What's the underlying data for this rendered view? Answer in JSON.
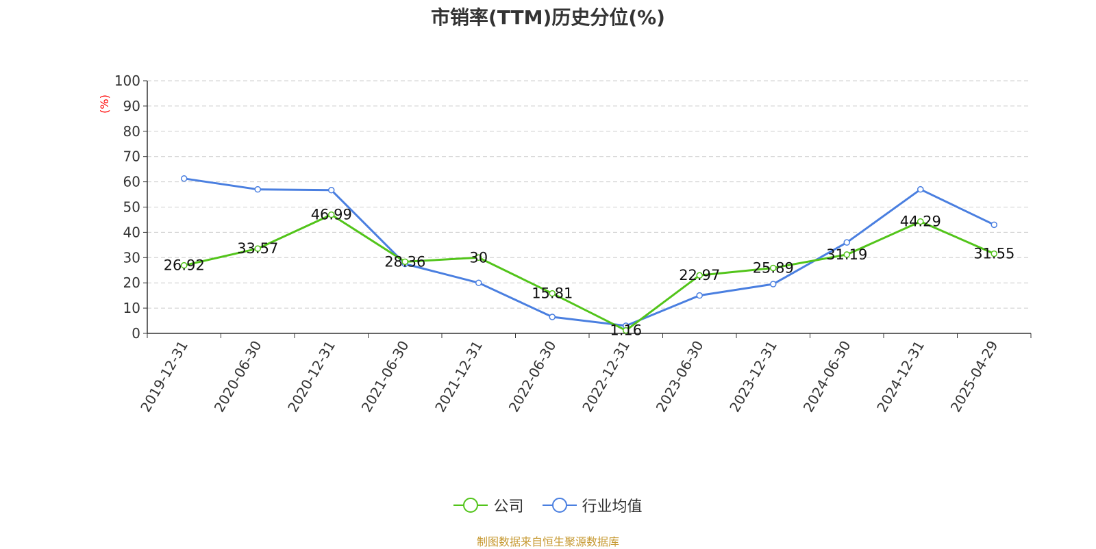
{
  "title": "市销率(TTM)历史分位(%)",
  "source_note": "制图数据来自恒生聚源数据库",
  "colors": {
    "company": "#52c41a",
    "industry": "#4a7fe0",
    "ylabel": "#ff0000",
    "source": "#c79a33"
  },
  "chart_data": {
    "type": "line",
    "title": "市销率(TTM)历史分位(%)",
    "xlabel": "",
    "ylabel": "(%)",
    "ylim": [
      0,
      100
    ],
    "yticks": [
      0,
      10,
      20,
      30,
      40,
      50,
      60,
      70,
      80,
      90,
      100
    ],
    "grid": true,
    "legend_position": "bottom-center",
    "categories": [
      "2019-12-31",
      "2020-06-30",
      "2020-12-31",
      "2021-06-30",
      "2021-12-31",
      "2022-06-30",
      "2022-12-31",
      "2023-06-30",
      "2023-12-31",
      "2024-06-30",
      "2024-12-31",
      "2025-04-29"
    ],
    "series": [
      {
        "name": "公司",
        "color": "#52c41a",
        "values": [
          26.92,
          33.57,
          46.99,
          28.36,
          30,
          15.81,
          1.16,
          22.97,
          25.89,
          31.19,
          44.29,
          31.55
        ],
        "labels": [
          "26.92",
          "33.57",
          "46.99",
          "28.36",
          "30",
          "15.81",
          "1.16",
          "22.97",
          "25.89",
          "31.19",
          "44.29",
          "31.55"
        ]
      },
      {
        "name": "行业均值",
        "color": "#4a7fe0",
        "values": [
          61.3,
          57.0,
          56.7,
          27.5,
          20.0,
          6.5,
          3.0,
          15.0,
          19.5,
          36.0,
          57.0,
          43.0
        ]
      }
    ]
  }
}
